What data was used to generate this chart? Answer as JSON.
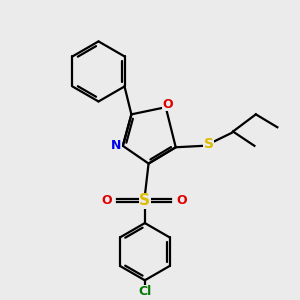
{
  "background_color": "#ebebeb",
  "atom_colors": {
    "C": "#000000",
    "N": "#0000ee",
    "O": "#dd0000",
    "S": "#ddbb00",
    "Cl": "#007700"
  },
  "figsize": [
    3.0,
    3.0
  ],
  "dpi": 100
}
